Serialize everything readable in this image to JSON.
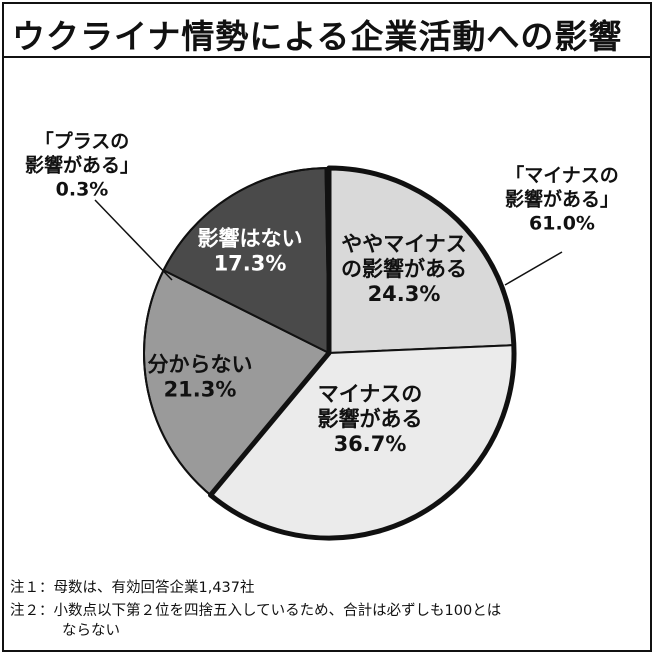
{
  "title": "ウクライナ情勢による企業活動への影響",
  "chart_data": {
    "type": "pie",
    "slices": [
      {
        "label": [
          "ややマイナス",
          "の影響がある"
        ],
        "value": 24.3,
        "value_label": "24.3%",
        "color": "#d9d9d9"
      },
      {
        "label": [
          "マイナスの",
          "影響がある"
        ],
        "value": 36.7,
        "value_label": "36.7%",
        "color": "#ebebeb"
      },
      {
        "label": [
          "分からない"
        ],
        "value": 21.3,
        "value_label": "21.3%",
        "color": "#9a9a9a"
      },
      {
        "label": [
          "影響はない"
        ],
        "value": 17.3,
        "value_label": "17.3%",
        "color": "#4a4a4a"
      },
      {
        "label": [
          "プラスの影響がある"
        ],
        "value": 0.3,
        "value_label": "0.3%",
        "color": "#ffffff"
      }
    ],
    "callouts": [
      {
        "lines": [
          "「マイナスの",
          "影響がある」",
          "61.0%"
        ]
      },
      {
        "lines": [
          "「プラスの",
          "影響がある」",
          "0.3%"
        ]
      }
    ]
  },
  "notes": {
    "note1": "注１：母数は、有効回答企業1,437社",
    "note2": "注２：小数点以下第２位を四捨五入しているため、合計は必ずしも100とは",
    "note2_cont": "ならない"
  }
}
